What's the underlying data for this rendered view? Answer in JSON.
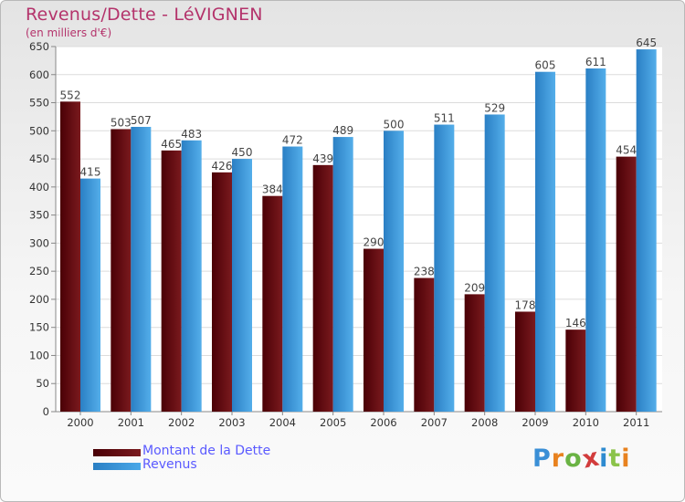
{
  "chart_data": {
    "type": "bar",
    "title": "Revenus/Dette - LéVIGNEN",
    "subtitle": "(en milliers d'€)",
    "categories": [
      "2000",
      "2001",
      "2002",
      "2003",
      "2004",
      "2005",
      "2006",
      "2007",
      "2008",
      "2009",
      "2010",
      "2011"
    ],
    "series": [
      {
        "name": "Montant de la Dette",
        "color": "#7a1a1e",
        "values": [
          552,
          503,
          465,
          426,
          384,
          439,
          290,
          238,
          209,
          178,
          146,
          454
        ]
      },
      {
        "name": "Revenus",
        "color": "#3d99dd",
        "values": [
          415,
          507,
          483,
          450,
          472,
          489,
          500,
          511,
          529,
          605,
          611,
          645
        ]
      }
    ],
    "ylim": [
      0,
      650
    ],
    "yticks": [
      0,
      50,
      100,
      150,
      200,
      250,
      300,
      350,
      400,
      450,
      500,
      550,
      600,
      650
    ],
    "grid": "horizontal",
    "legend_placement": "bottom-left"
  },
  "logo": {
    "letters": [
      "P",
      "r",
      "o",
      "x",
      "i",
      "t",
      "i"
    ],
    "colors": [
      "#3a8fd6",
      "#e8821f",
      "#6ab344",
      "#d23c3c",
      "#2e8bd0",
      "#8bc34a",
      "#e8821f"
    ]
  }
}
